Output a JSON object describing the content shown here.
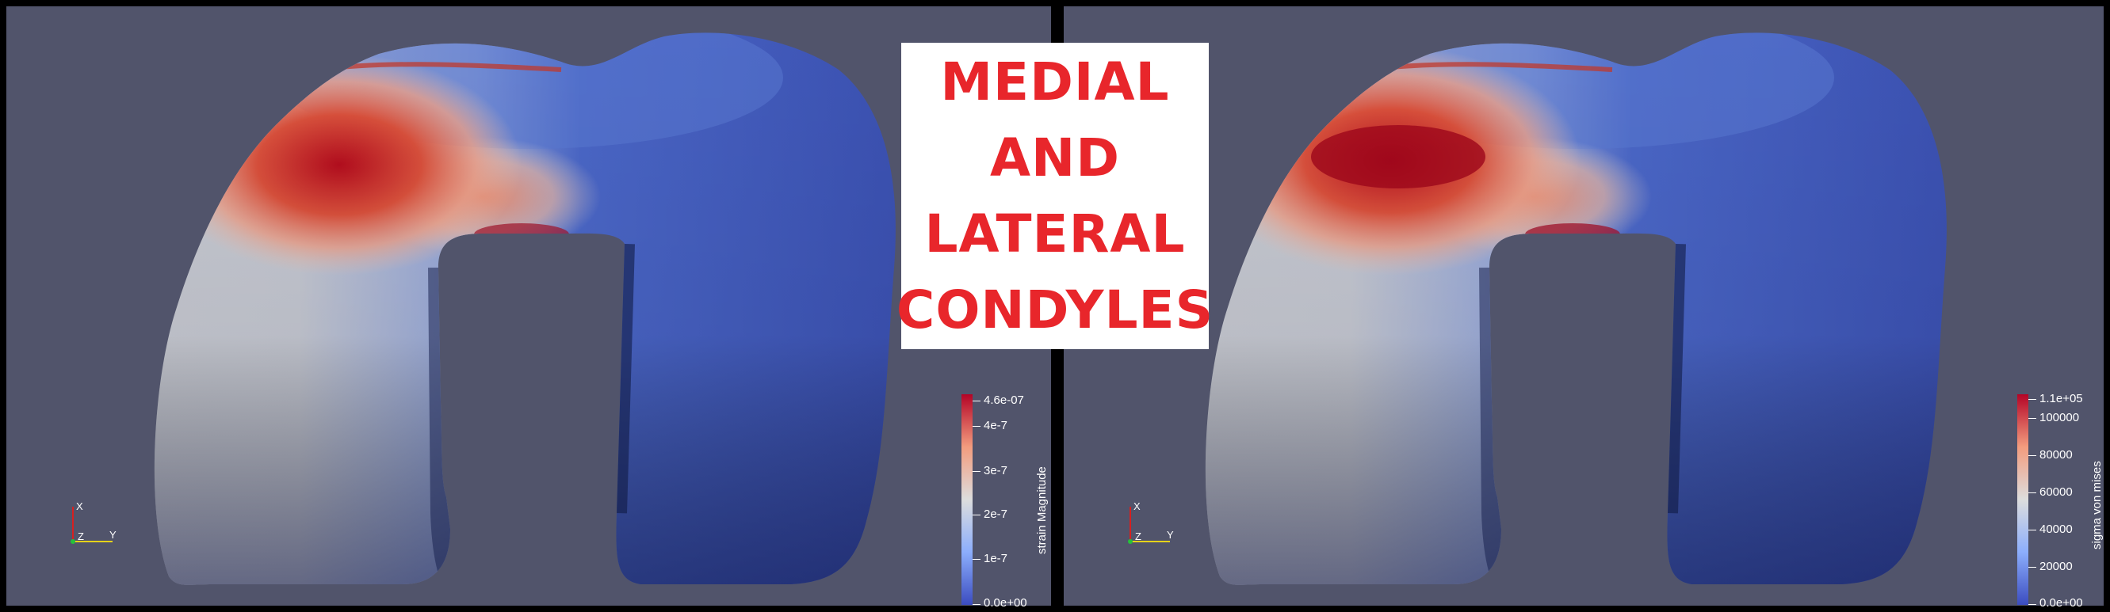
{
  "title_lines": [
    "MEDIAL",
    "AND",
    "LATERAL",
    "CONDYLES"
  ],
  "colors": {
    "background": "#51546b",
    "title_text": "#e8262b",
    "colormap_low": "#3b4cc0",
    "colormap_mid": "#dddddd",
    "colormap_high": "#b40426"
  },
  "left_view": {
    "colorbar_title": "strain Magnitude",
    "max_label": "4.6e-07",
    "ticks": [
      "4e-7",
      "3e-7",
      "2e-7",
      "1e-7"
    ],
    "min_label": "0.0e+00"
  },
  "right_view": {
    "colorbar_title": "sigma von mises",
    "max_label": "1.1e+05",
    "ticks": [
      "100000",
      "80000",
      "60000",
      "40000",
      "20000"
    ],
    "min_label": "0.0e+00"
  },
  "axes_labels": {
    "x": "X",
    "y": "Y",
    "z": "Z"
  }
}
